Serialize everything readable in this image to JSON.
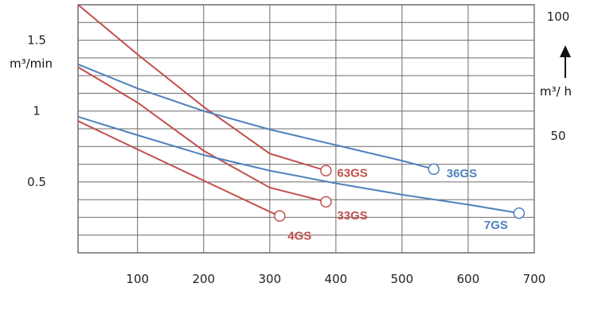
{
  "chart_data": {
    "type": "line",
    "title": "",
    "xlabel": "",
    "ylabel_left": "m³/min",
    "ylabel_right": "m³/ h",
    "xlim": [
      10,
      700
    ],
    "ylim": [
      0,
      1.75
    ],
    "grid": true,
    "x_ticks": [
      "100",
      "200",
      "300",
      "400",
      "500",
      "600",
      "700"
    ],
    "y_left_ticks": [
      {
        "value": 0.5,
        "label": "0.5"
      },
      {
        "value": 1,
        "label": "1"
      },
      {
        "value": 1.5,
        "label": "1.5"
      }
    ],
    "y_right_ticks": [
      {
        "value": 50,
        "label": "50"
      },
      {
        "value": 100,
        "label": "100"
      }
    ],
    "series": [
      {
        "name": "63GS",
        "color": "#c0504d",
        "x": [
          10,
          100,
          200,
          300,
          385
        ],
        "y": [
          1.75,
          1.4,
          1.03,
          0.7,
          0.58
        ]
      },
      {
        "name": "33GS",
        "color": "#c0504d",
        "x": [
          10,
          100,
          200,
          300,
          385
        ],
        "y": [
          1.31,
          1.06,
          0.72,
          0.46,
          0.36
        ]
      },
      {
        "name": "4GS",
        "color": "#c0504d",
        "x": [
          10,
          100,
          200,
          300,
          315
        ],
        "y": [
          0.93,
          0.73,
          0.51,
          0.29,
          0.26
        ]
      },
      {
        "name": "36GS",
        "color": "#4f81bd",
        "x": [
          10,
          100,
          200,
          300,
          400,
          500,
          548
        ],
        "y": [
          1.33,
          1.16,
          1.0,
          0.87,
          0.76,
          0.65,
          0.59
        ]
      },
      {
        "name": "7GS",
        "color": "#4f81bd",
        "x": [
          10,
          100,
          200,
          300,
          400,
          500,
          600,
          677
        ],
        "y": [
          0.96,
          0.83,
          0.69,
          0.58,
          0.49,
          0.41,
          0.34,
          0.28
        ]
      }
    ]
  }
}
